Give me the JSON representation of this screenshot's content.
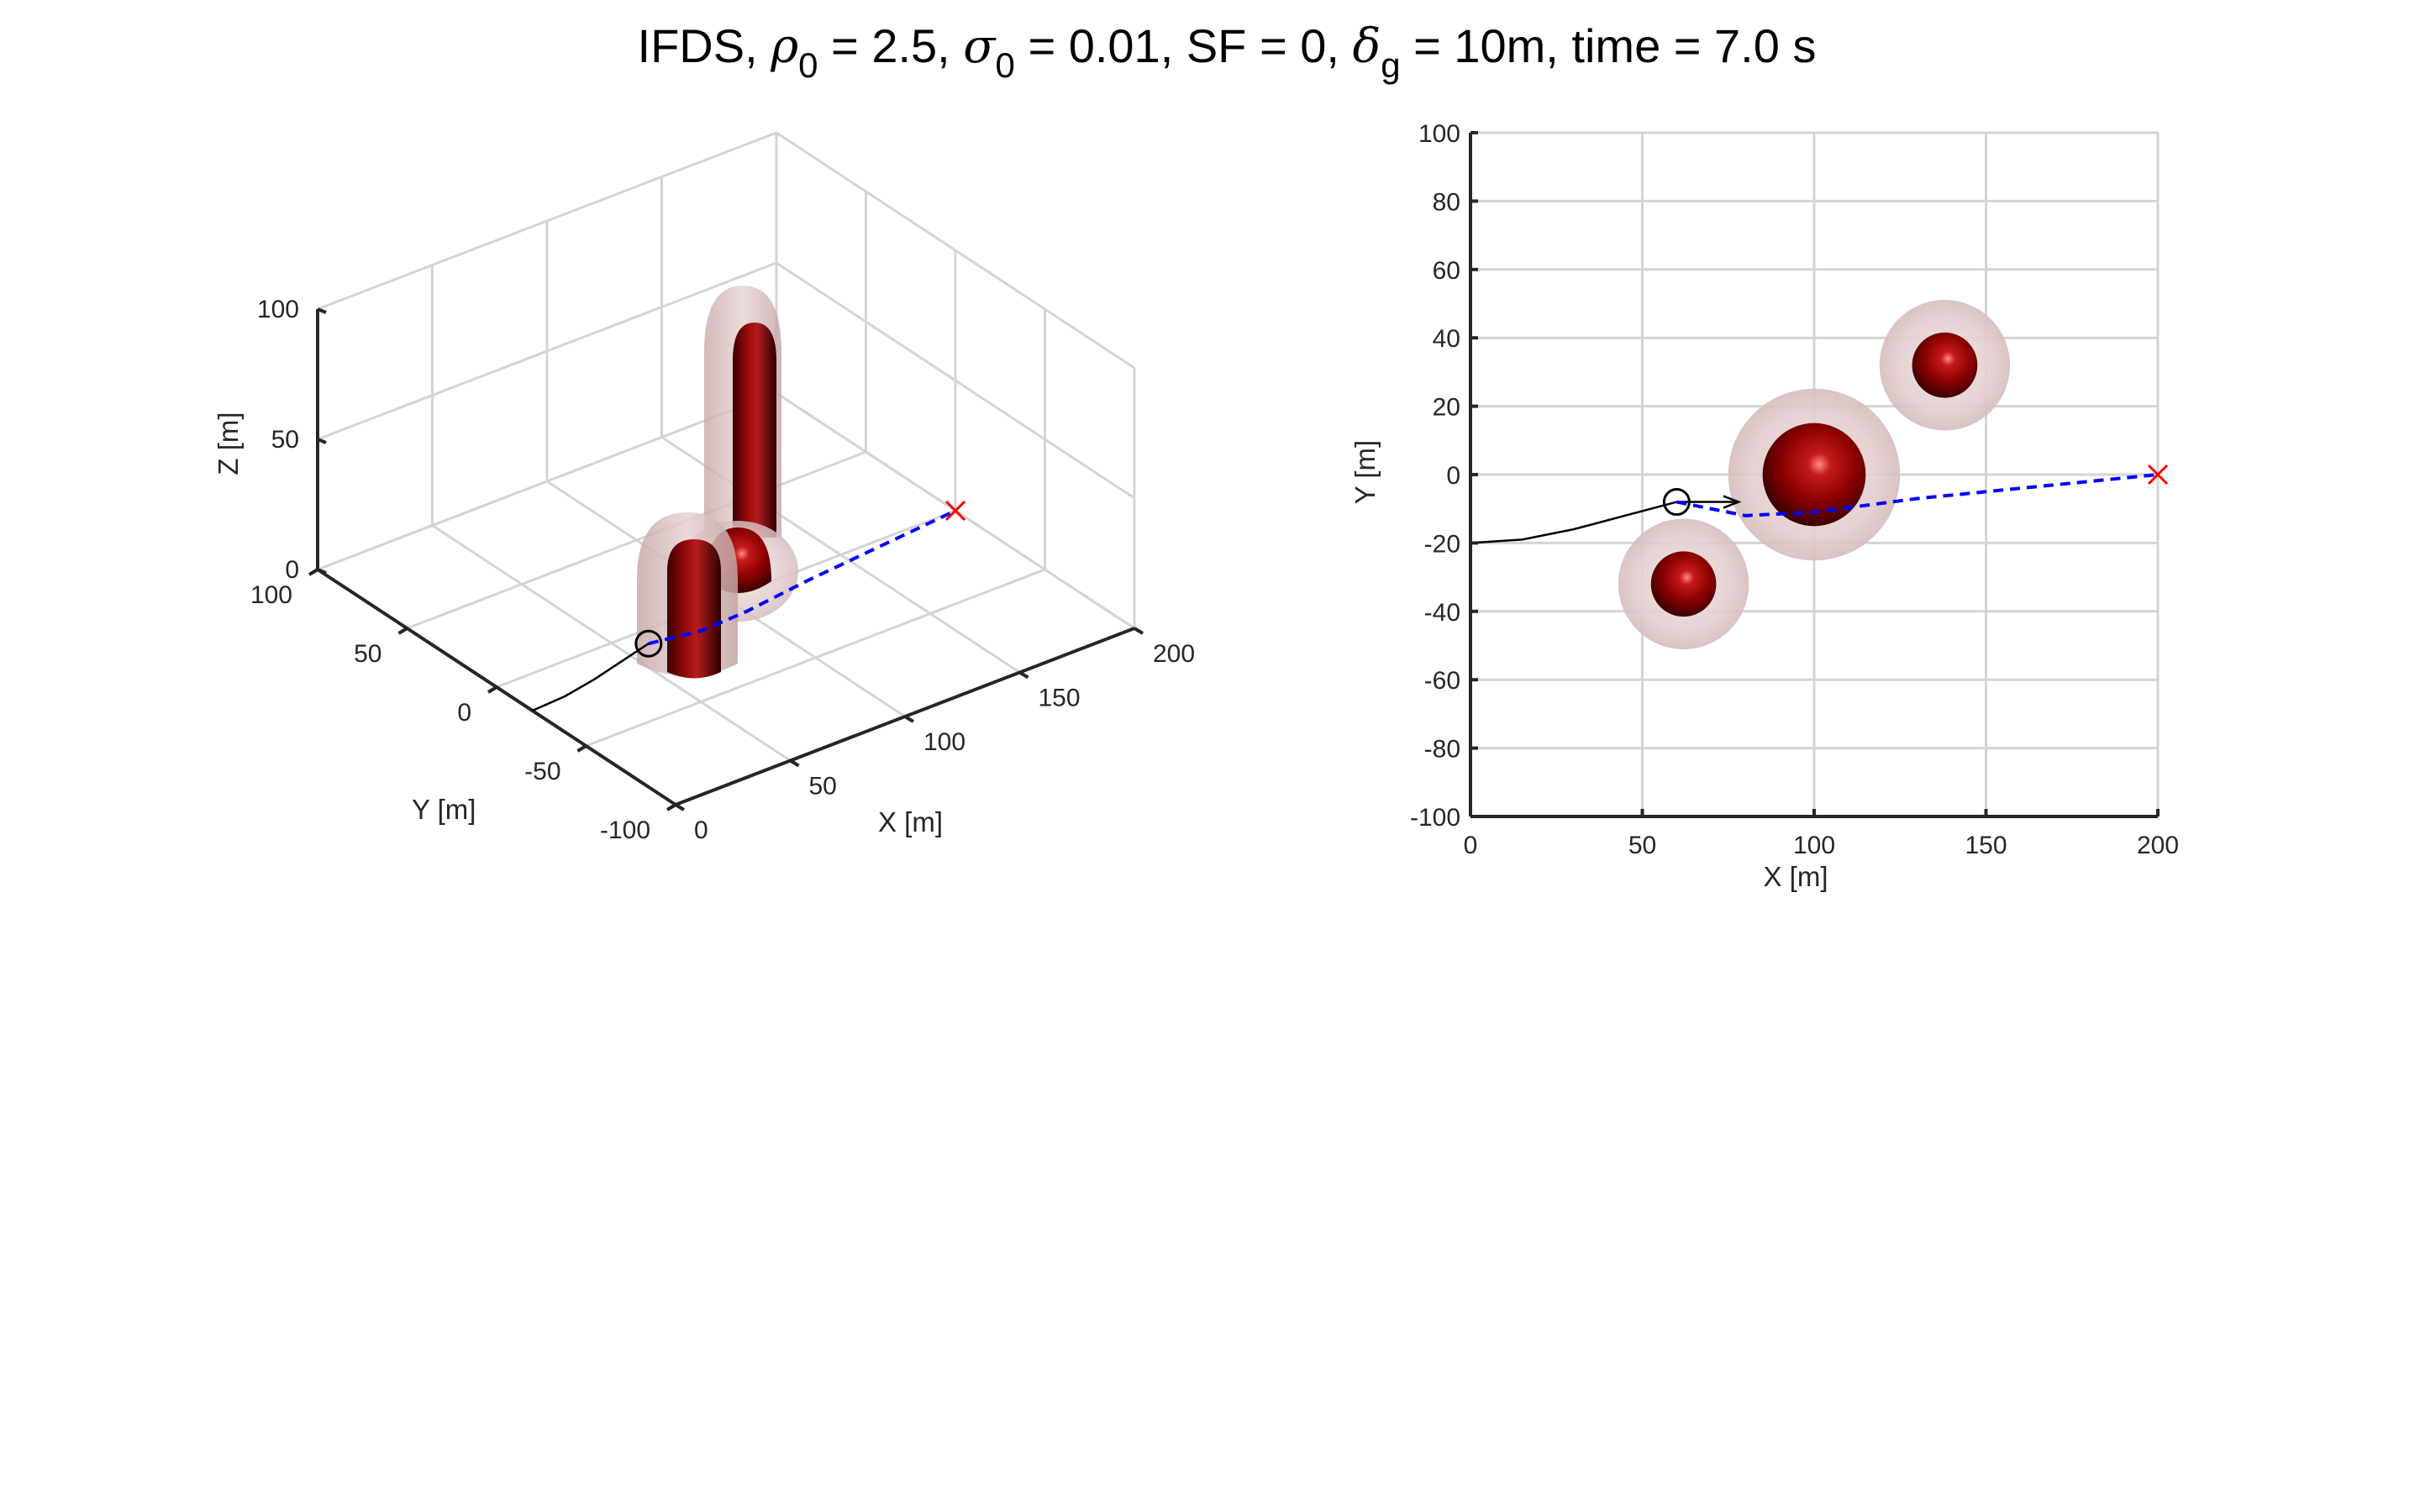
{
  "title": {
    "prefix": "IFDS, ",
    "rho_symbol": "ρ",
    "rho_sub": "0",
    "rho_value": " = 2.5, ",
    "sigma_symbol": "σ",
    "sigma_sub": "0",
    "sigma_value": " = 0.01, SF = 0, ",
    "delta_symbol": "δ",
    "delta_sub": "g",
    "delta_value": " = 10m, time =  7.0 s"
  },
  "chart_data": [
    {
      "type": "scatter",
      "view": "3d",
      "xlabel": "X [m]",
      "ylabel": "Y [m]",
      "zlabel": "Z [m]",
      "xlim": [
        0,
        200
      ],
      "ylim": [
        -100,
        100
      ],
      "zlim": [
        0,
        100
      ],
      "xticks": [
        "0",
        "50",
        "100",
        "150",
        "200"
      ],
      "yticks": [
        "-100",
        "-50",
        "0",
        "50",
        "100"
      ],
      "zticks": [
        "0",
        "50",
        "100"
      ],
      "grid": true,
      "obstacles": [
        {
          "shape": "cylinder",
          "x": 60,
          "y": -32,
          "radius": 8,
          "height": 30
        },
        {
          "shape": "hemisphere",
          "x": 100,
          "y": 0,
          "radius": 15
        },
        {
          "shape": "cylinder",
          "x": 138,
          "y": 32,
          "radius": 8,
          "height": 80
        }
      ],
      "series": [
        {
          "role": "traveled path",
          "style": "solid",
          "color": "#000000",
          "x": [
            0,
            15,
            30,
            45,
            60
          ],
          "y": [
            -20,
            -19,
            -16,
            -12,
            -8
          ],
          "z": [
            0,
            0,
            0,
            0,
            0
          ]
        },
        {
          "role": "planned path",
          "style": "dashed",
          "color": "#0000ff",
          "x": [
            60,
            80,
            100,
            130,
            160,
            200
          ],
          "y": [
            -8,
            -12,
            -11,
            -7,
            -4,
            0
          ],
          "z": [
            0,
            0,
            0,
            0,
            0,
            0
          ]
        }
      ],
      "current_position": {
        "x": 60,
        "y": -8,
        "z": 0
      },
      "goal": {
        "x": 200,
        "y": 0,
        "z": 0,
        "marker": "x",
        "color": "#ff0000"
      }
    },
    {
      "type": "scatter",
      "view": "top",
      "xlabel": "X [m]",
      "ylabel": "Y [m]",
      "xlim": [
        0,
        200
      ],
      "ylim": [
        -100,
        100
      ],
      "xticks": [
        "0",
        "50",
        "100",
        "150",
        "200"
      ],
      "yticks": [
        "-100",
        "-80",
        "-60",
        "-40",
        "-20",
        "0",
        "20",
        "40",
        "60",
        "80",
        "100"
      ],
      "grid": true,
      "obstacles": [
        {
          "x": 62,
          "y": -32,
          "radius": 9.5,
          "influence_radius": 19
        },
        {
          "x": 100,
          "y": 0,
          "radius": 15,
          "influence_radius": 25
        },
        {
          "x": 138,
          "y": 32,
          "radius": 9.5,
          "influence_radius": 19
        }
      ],
      "series": [
        {
          "role": "traveled path",
          "style": "solid",
          "color": "#000000",
          "x": [
            0,
            15,
            30,
            45,
            60
          ],
          "y": [
            -20,
            -19,
            -16,
            -12,
            -8
          ]
        },
        {
          "role": "heading arrow",
          "style": "solid",
          "color": "#000000",
          "x": [
            60,
            78
          ],
          "y": [
            -8,
            -8
          ]
        },
        {
          "role": "planned path",
          "style": "dashed",
          "color": "#0000ff",
          "x": [
            60,
            80,
            100,
            130,
            160,
            200
          ],
          "y": [
            -8,
            -12,
            -11,
            -7,
            -4,
            0
          ]
        }
      ],
      "current_position": {
        "x": 60,
        "y": -8
      },
      "goal": {
        "x": 200,
        "y": 0,
        "marker": "x",
        "color": "#ff0000"
      }
    }
  ],
  "colors": {
    "obstacle": "#8b0000",
    "obstacle_shell": "#b08080",
    "grid": "#d4d4d4",
    "axis": "#262626"
  }
}
